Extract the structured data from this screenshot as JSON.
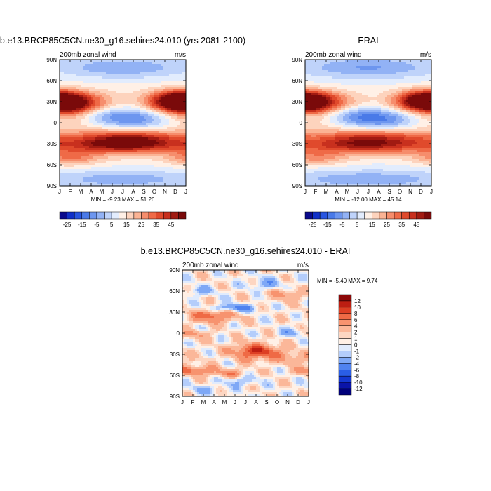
{
  "chart_data": [
    {
      "type": "heatmap",
      "id": "model",
      "title": "b.e13.BRCP85C5CN.ne30_g16.sehires24.010 (yrs 2081-2100)",
      "left_label": "200mb zonal wind",
      "right_label": "m/s",
      "xlabel": "",
      "ylabel": "",
      "x_ticks": [
        "J",
        "F",
        "M",
        "A",
        "M",
        "J",
        "J",
        "A",
        "S",
        "O",
        "N",
        "D",
        "J"
      ],
      "y_ticks": [
        "90N",
        "60N",
        "30N",
        "0",
        "30S",
        "60S",
        "90S"
      ],
      "ylim": [
        -90,
        90
      ],
      "stats": "MIN = -9.23 MAX = 51.26",
      "colorbar": {
        "labels": [
          "-25",
          "-15",
          "-5",
          "5",
          "15",
          "25",
          "35",
          "45"
        ],
        "levels": [
          -30,
          -25,
          -20,
          -15,
          -10,
          -5,
          0,
          5,
          10,
          15,
          20,
          25,
          30,
          35,
          40,
          45,
          50
        ],
        "colors": [
          "#0a0a8c",
          "#1030c8",
          "#2855e0",
          "#4a7ae8",
          "#6d96ef",
          "#92b2f5",
          "#bfd3fa",
          "#e2ecfd",
          "#fff0e6",
          "#fdd3bd",
          "#fbb394",
          "#f68d6c",
          "#ef6a47",
          "#e04a2c",
          "#c8301e",
          "#a11b12",
          "#7a0a0a"
        ]
      },
      "field": {
        "description": "zonal wind (m/s), latitude x month",
        "jets": [
          {
            "lat": 27,
            "month": 0.7,
            "peak": 51.26
          },
          {
            "lat": 32,
            "month": 11.3,
            "peak": 42
          },
          {
            "lat": -28,
            "month": 7.0,
            "peak": 51
          },
          {
            "lat": 5,
            "month": 7.2,
            "peak": -9.23
          }
        ]
      }
    },
    {
      "type": "heatmap",
      "id": "erai",
      "title": "ERAI",
      "left_label": "200mb zonal wind",
      "right_label": "m/s",
      "xlabel": "",
      "ylabel": "",
      "x_ticks": [
        "J",
        "F",
        "M",
        "A",
        "M",
        "J",
        "J",
        "A",
        "S",
        "O",
        "N",
        "D",
        "J"
      ],
      "y_ticks": [
        "90N",
        "60N",
        "30N",
        "0",
        "30S",
        "60S",
        "90S"
      ],
      "ylim": [
        -90,
        90
      ],
      "stats": "MIN = -12.00 MAX = 45.14",
      "colorbar": {
        "labels": [
          "-25",
          "-15",
          "-5",
          "5",
          "15",
          "25",
          "35",
          "45"
        ],
        "levels": [
          -30,
          -25,
          -20,
          -15,
          -10,
          -5,
          0,
          5,
          10,
          15,
          20,
          25,
          30,
          35,
          40,
          45,
          50
        ],
        "colors": [
          "#0a0a8c",
          "#1030c8",
          "#2855e0",
          "#4a7ae8",
          "#6d96ef",
          "#92b2f5",
          "#bfd3fa",
          "#e2ecfd",
          "#fff0e6",
          "#fdd3bd",
          "#fbb394",
          "#f68d6c",
          "#ef6a47",
          "#e04a2c",
          "#c8301e",
          "#a11b12",
          "#7a0a0a"
        ]
      },
      "field": {
        "description": "zonal wind (m/s), latitude x month",
        "jets": [
          {
            "lat": 28,
            "month": 0.7,
            "peak": 45.14
          },
          {
            "lat": 32,
            "month": 11.3,
            "peak": 40
          },
          {
            "lat": -28,
            "month": 7.0,
            "peak": 42
          },
          {
            "lat": 5,
            "month": 7.2,
            "peak": -12.0
          }
        ]
      }
    },
    {
      "type": "heatmap",
      "id": "diff",
      "title": "b.e13.BRCP85C5CN.ne30_g16.sehires24.010 - ERAI",
      "left_label": "200mb zonal wind",
      "right_label": "m/s",
      "xlabel": "",
      "ylabel": "",
      "x_ticks": [
        "J",
        "F",
        "M",
        "A",
        "M",
        "J",
        "J",
        "A",
        "S",
        "O",
        "N",
        "D",
        "J"
      ],
      "y_ticks": [
        "90N",
        "60N",
        "30N",
        "0",
        "30S",
        "60S",
        "90S"
      ],
      "ylim": [
        -90,
        90
      ],
      "stats": "MIN =  -5.40 MAX =   9.74",
      "colorbar": {
        "labels": [
          "12",
          "10",
          "8",
          "6",
          "4",
          "2",
          "1",
          "0",
          "-1",
          "-2",
          "-4",
          "-6",
          "-8",
          "-10",
          "-12"
        ],
        "levels": [
          -12,
          -10,
          -8,
          -6,
          -4,
          -2,
          -1,
          0,
          1,
          2,
          4,
          6,
          8,
          10,
          12
        ],
        "colors": [
          "#00007a",
          "#0a14a8",
          "#1438d0",
          "#2a5ee6",
          "#4f82ef",
          "#7ea8f6",
          "#b4cdfb",
          "#e0ebfd",
          "#fff0e6",
          "#fdd6c2",
          "#fbb799",
          "#f7936f",
          "#ef6a45",
          "#dd3f24",
          "#bd1e12",
          "#8c0808"
        ]
      },
      "field": {
        "description": "model minus ERAI zonal wind difference (m/s)",
        "features": [
          {
            "lat": -26,
            "month": 7.0,
            "value": 9.74
          },
          {
            "lat": 24,
            "month": 3.0,
            "value": 8
          },
          {
            "lat": -53,
            "month": 1.0,
            "value": 7
          },
          {
            "lat": 36,
            "month": 5.0,
            "value": -5.4
          },
          {
            "lat": 0,
            "month": 10.8,
            "value": -5
          }
        ]
      }
    }
  ]
}
